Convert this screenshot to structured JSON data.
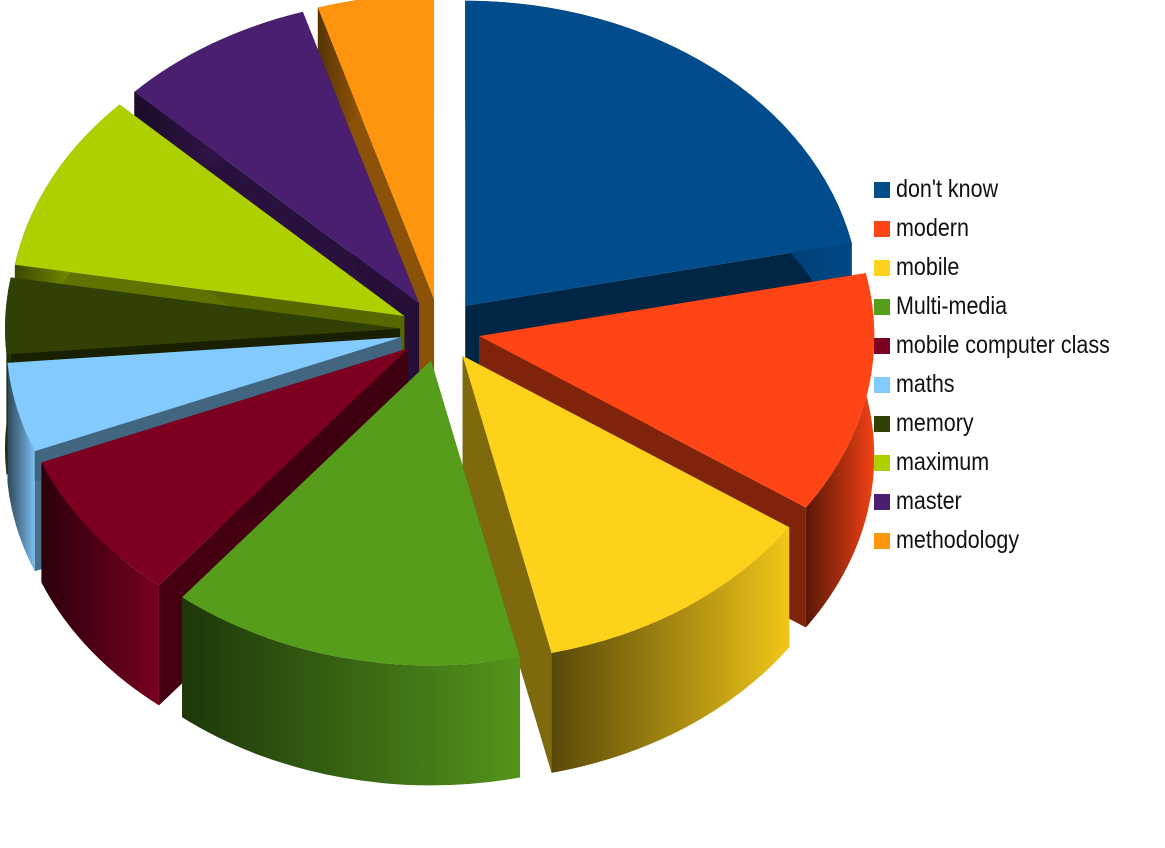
{
  "chart_data": {
    "type": "pie",
    "style": "3d-exploded",
    "title": "",
    "legend_position": "right",
    "slices": [
      {
        "label": "don't know",
        "value": 21.0,
        "color": "#004C8C"
      },
      {
        "label": "modern",
        "value": 12.4,
        "color": "#FF4515"
      },
      {
        "label": "mobile",
        "value": 11.5,
        "color": "#FED11A"
      },
      {
        "label": "Multi-media",
        "value": 14.0,
        "color": "#579D1C"
      },
      {
        "label": "mobile computer class",
        "value": 7.8,
        "color": "#7E0021"
      },
      {
        "label": "maths",
        "value": 4.6,
        "color": "#83CAFF"
      },
      {
        "label": "memory",
        "value": 3.9,
        "color": "#314004"
      },
      {
        "label": "maximum",
        "value": 9.2,
        "color": "#AECF00"
      },
      {
        "label": "master",
        "value": 7.8,
        "color": "#4B1F6F"
      },
      {
        "label": "methodology",
        "value": 4.6,
        "color": "#FF950E"
      }
    ]
  }
}
